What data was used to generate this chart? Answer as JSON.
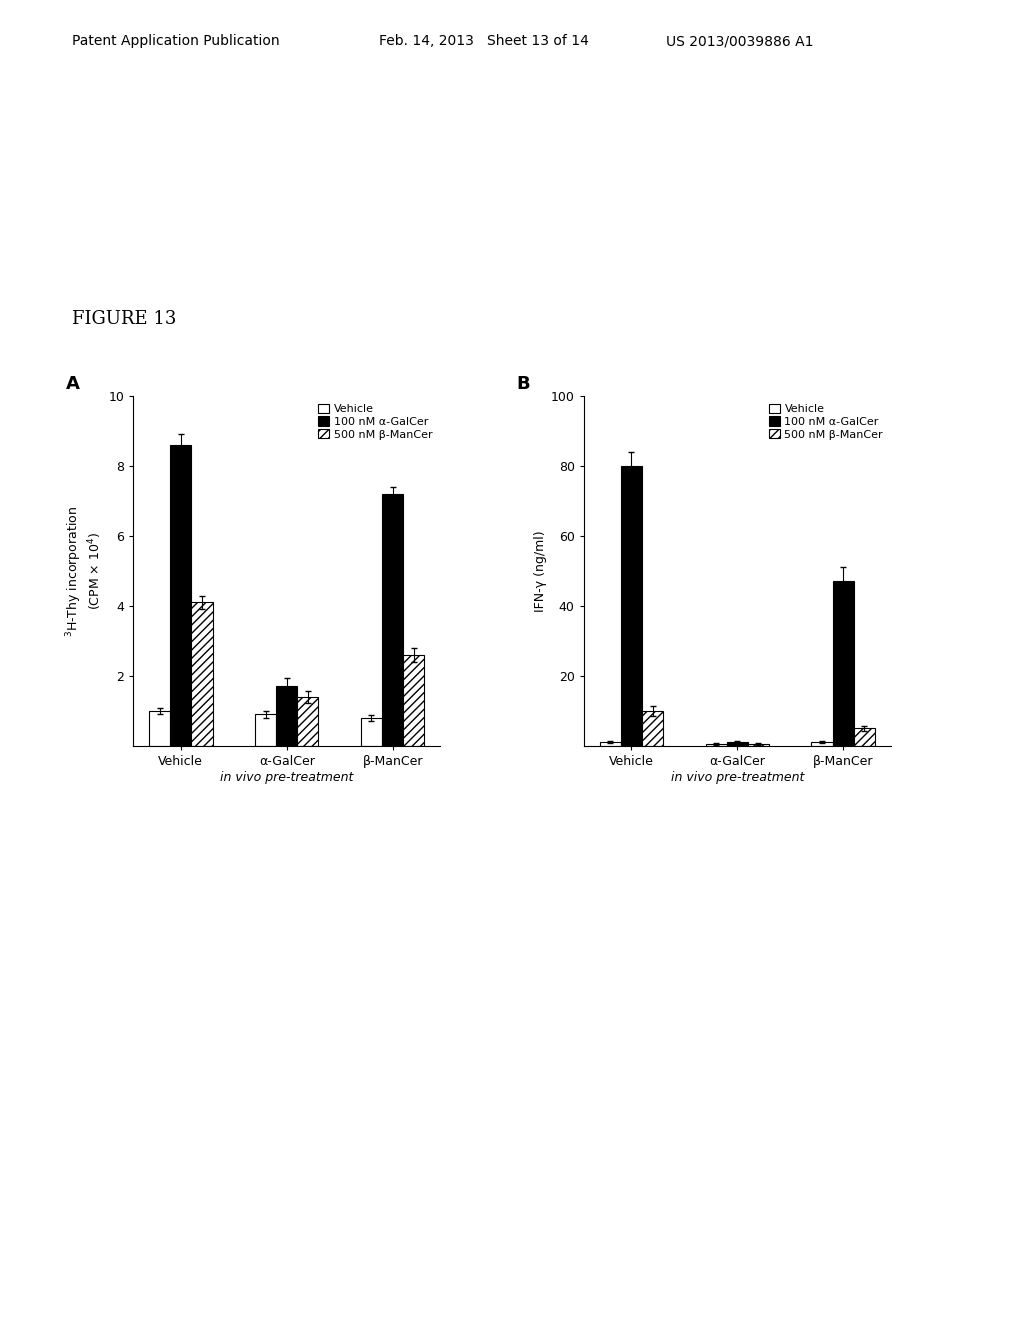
{
  "fig_label": "FIGURE 13",
  "header_left": "Patent Application Publication",
  "header_mid": "Feb. 14, 2013   Sheet 13 of 14",
  "header_right": "US 2013/0039886 A1",
  "panel_A": {
    "label": "A",
    "ylabel": "$^3$H-Thy incorporation\n(CPM × 10$^4$)",
    "xlabel": "in vivo pre-treatment",
    "xlabels": [
      "Vehicle",
      "α-GalCer",
      "β-ManCer"
    ],
    "ylim": [
      0,
      10
    ],
    "yticks": [
      2,
      4,
      6,
      8,
      10
    ],
    "groups": [
      "Vehicle",
      "α-GalCer",
      "β-ManCer"
    ],
    "series_labels": [
      "Vehicle",
      "100 nM α-GalCer",
      "500 nM β-ManCer"
    ],
    "values": [
      [
        1.0,
        8.6,
        4.1
      ],
      [
        0.9,
        1.7,
        1.4
      ],
      [
        0.8,
        7.2,
        2.6
      ]
    ],
    "errors": [
      [
        0.08,
        0.3,
        0.18
      ],
      [
        0.1,
        0.25,
        0.18
      ],
      [
        0.08,
        0.2,
        0.2
      ]
    ]
  },
  "panel_B": {
    "label": "B",
    "ylabel": "IFN-γ (ng/ml)",
    "xlabel": "in vivo pre-treatment",
    "xlabels": [
      "Vehicle",
      "α-GalCer",
      "β-ManCer"
    ],
    "ylim": [
      0,
      100
    ],
    "yticks": [
      20,
      40,
      60,
      80,
      100
    ],
    "groups": [
      "Vehicle",
      "α-GalCer",
      "β-ManCer"
    ],
    "series_labels": [
      "Vehicle",
      "100 nM α-GalCer",
      "500 nM β-ManCer"
    ],
    "values": [
      [
        1.0,
        80.0,
        10.0
      ],
      [
        0.5,
        1.0,
        0.5
      ],
      [
        1.0,
        47.0,
        5.0
      ]
    ],
    "errors": [
      [
        0.3,
        4.0,
        1.5
      ],
      [
        0.2,
        0.3,
        0.2
      ],
      [
        0.3,
        4.0,
        0.8
      ]
    ]
  },
  "bar_colors": [
    "white",
    "black",
    "white"
  ],
  "bar_hatches": [
    null,
    null,
    "////"
  ],
  "bar_edgecolors": [
    "black",
    "black",
    "black"
  ],
  "header_fontsize": 10,
  "figlabel_fontsize": 13,
  "panel_label_fontsize": 13,
  "axis_fontsize": 9,
  "legend_fontsize": 8
}
